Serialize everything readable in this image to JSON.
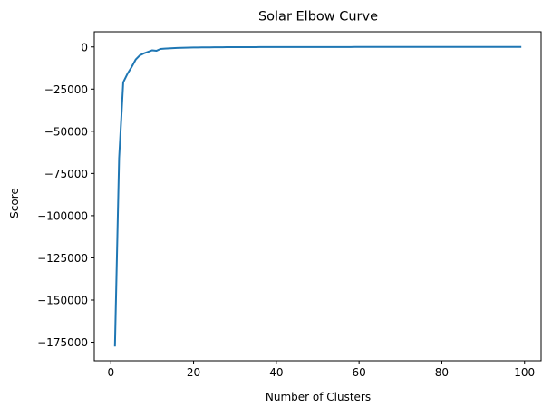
{
  "chart_data": {
    "type": "line",
    "title": "Solar Elbow Curve",
    "xlabel": "Number of Clusters",
    "ylabel": "Score",
    "xlim": [
      -4,
      104
    ],
    "ylim": [
      -186000,
      9000
    ],
    "x_ticks": [
      0,
      20,
      40,
      60,
      80,
      100
    ],
    "x_tick_labels": [
      "0",
      "20",
      "40",
      "60",
      "80",
      "100"
    ],
    "y_ticks": [
      0,
      -25000,
      -50000,
      -75000,
      -100000,
      -125000,
      -150000,
      -175000
    ],
    "y_tick_labels": [
      "0",
      "−25000",
      "−50000",
      "−75000",
      "−100000",
      "−125000",
      "−150000",
      "−175000"
    ],
    "grid": false,
    "series": [
      {
        "color": "#1f77b4",
        "x": [
          1,
          2,
          3,
          4,
          5,
          6,
          7,
          8,
          9,
          10,
          11,
          12,
          13,
          14,
          15,
          16,
          17,
          18,
          19,
          20,
          21,
          22,
          23,
          24,
          25,
          26,
          27,
          28,
          29,
          30,
          31,
          32,
          33,
          34,
          35,
          36,
          37,
          38,
          39,
          40,
          41,
          42,
          43,
          44,
          45,
          46,
          47,
          48,
          49,
          50,
          51,
          52,
          53,
          54,
          55,
          56,
          57,
          58,
          59,
          60,
          61,
          62,
          63,
          64,
          65,
          66,
          67,
          68,
          69,
          70,
          71,
          72,
          73,
          74,
          75,
          76,
          77,
          78,
          79,
          80,
          81,
          82,
          83,
          84,
          85,
          86,
          87,
          88,
          89,
          90,
          91,
          92,
          93,
          94,
          95,
          96,
          97,
          98,
          99
        ],
        "y": [
          -177000,
          -66000,
          -21000,
          -16000,
          -12000,
          -7500,
          -5000,
          -3800,
          -2900,
          -2000,
          -2300,
          -1200,
          -1000,
          -850,
          -720,
          -620,
          -540,
          -470,
          -410,
          -360,
          -320,
          -290,
          -260,
          -235,
          -215,
          -195,
          -180,
          -165,
          -152,
          -140,
          -130,
          -121,
          -113,
          -106,
          -100,
          -94,
          -88,
          -83,
          -78,
          -74,
          -70,
          -66,
          -63,
          -60,
          -57,
          -54,
          -52,
          -50,
          -48,
          -46,
          -44,
          -42,
          -40,
          -38,
          -36,
          -35,
          -34,
          -33,
          -32,
          -31,
          -30,
          -29,
          -28,
          -27,
          -26,
          -25,
          -24,
          -23,
          -22,
          -21,
          -20,
          -19,
          -18,
          -17,
          -16,
          -15,
          -14,
          -13,
          -12,
          -11,
          -10,
          -10,
          -9,
          -9,
          -8,
          -8,
          -7,
          -7,
          -6,
          -6,
          -5,
          -5,
          -4,
          -4,
          -3,
          -3,
          -2,
          -2,
          -2
        ]
      }
    ]
  }
}
